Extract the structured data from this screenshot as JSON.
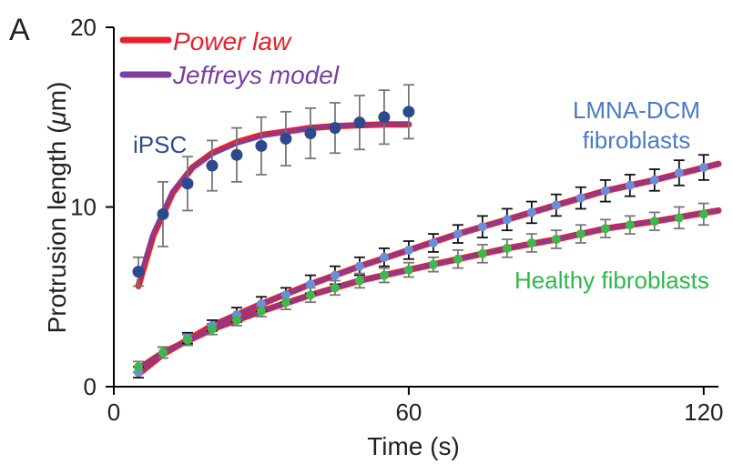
{
  "panel_label": "A",
  "chart_data": {
    "type": "line",
    "title": "",
    "xlabel": "Time (s)",
    "ylabel_prefix": "Protrusion length (",
    "ylabel_mu": "μ",
    "ylabel_suffix": "m)",
    "xlim": [
      0,
      123
    ],
    "ylim": [
      0,
      20
    ],
    "xticks": [
      0,
      60,
      120
    ],
    "yticks": [
      0,
      10,
      20
    ],
    "grid": false,
    "legend_position": "top-left",
    "legend": [
      {
        "label": "Power law",
        "color": "#e8202a"
      },
      {
        "label": "Jeffreys model",
        "color": "#7a3fa0"
      }
    ],
    "series": [
      {
        "name": "iPSC",
        "label_lines": [
          "iPSC"
        ],
        "color": "#2e4a8e",
        "label_color": "#2e4a8e",
        "x": [
          5,
          10,
          15,
          20,
          25,
          30,
          35,
          40,
          45,
          50,
          55,
          60
        ],
        "y": [
          6.4,
          9.6,
          11.3,
          12.3,
          12.9,
          13.4,
          13.8,
          14.1,
          14.4,
          14.7,
          15.0,
          15.3
        ],
        "err": [
          0.8,
          1.8,
          1.5,
          1.4,
          1.5,
          1.6,
          1.5,
          1.4,
          1.4,
          1.5,
          1.5,
          1.5
        ]
      },
      {
        "name": "LMNA-DCM fibroblasts",
        "label_lines": [
          "LMNA-DCM",
          "fibroblasts"
        ],
        "color": "#6a8fd8",
        "label_color": "#4a7ac8",
        "x": [
          5,
          10,
          15,
          20,
          25,
          30,
          35,
          40,
          45,
          50,
          55,
          60,
          65,
          70,
          75,
          80,
          85,
          90,
          95,
          100,
          105,
          110,
          115,
          120
        ],
        "y": [
          0.8,
          1.9,
          2.7,
          3.4,
          4.0,
          4.6,
          5.1,
          5.7,
          6.2,
          6.7,
          7.2,
          7.6,
          8.0,
          8.5,
          8.9,
          9.3,
          9.7,
          10.1,
          10.5,
          10.9,
          11.2,
          11.5,
          11.9,
          12.2
        ],
        "err": [
          0.3,
          0.3,
          0.3,
          0.3,
          0.4,
          0.4,
          0.4,
          0.5,
          0.5,
          0.5,
          0.5,
          0.5,
          0.5,
          0.5,
          0.6,
          0.6,
          0.6,
          0.6,
          0.6,
          0.6,
          0.6,
          0.6,
          0.7,
          0.7
        ]
      },
      {
        "name": "Healthy fibroblasts",
        "label_lines": [
          "Healthy fibroblasts"
        ],
        "color": "#3db84a",
        "label_color": "#2db84a",
        "x": [
          5,
          10,
          15,
          20,
          25,
          30,
          35,
          40,
          45,
          50,
          55,
          60,
          65,
          70,
          75,
          80,
          85,
          90,
          95,
          100,
          105,
          110,
          115,
          120
        ],
        "y": [
          1.1,
          1.9,
          2.6,
          3.2,
          3.7,
          4.2,
          4.7,
          5.1,
          5.5,
          5.9,
          6.2,
          6.5,
          6.8,
          7.1,
          7.4,
          7.7,
          8.0,
          8.2,
          8.5,
          8.8,
          9.0,
          9.2,
          9.4,
          9.6
        ],
        "err": [
          0.3,
          0.3,
          0.3,
          0.3,
          0.3,
          0.3,
          0.4,
          0.4,
          0.4,
          0.4,
          0.4,
          0.4,
          0.4,
          0.5,
          0.5,
          0.5,
          0.5,
          0.5,
          0.5,
          0.5,
          0.5,
          0.5,
          0.6,
          0.6
        ]
      }
    ],
    "fits": [
      {
        "series": "iPSC",
        "model": "Power law",
        "x": [
          5,
          8,
          12,
          16,
          20,
          25,
          30,
          35,
          40,
          45,
          50,
          55,
          60
        ],
        "y": [
          5.6,
          8.4,
          10.8,
          12.2,
          13.0,
          13.6,
          14.0,
          14.2,
          14.4,
          14.5,
          14.55,
          14.6,
          14.6
        ]
      },
      {
        "series": "iPSC",
        "model": "Jeffreys model",
        "x": [
          5,
          8,
          12,
          16,
          20,
          25,
          30,
          35,
          40,
          45,
          50,
          55,
          60
        ],
        "y": [
          5.9,
          8.6,
          10.9,
          12.2,
          12.9,
          13.5,
          13.9,
          14.2,
          14.4,
          14.5,
          14.6,
          14.6,
          14.65
        ]
      },
      {
        "series": "LMNA-DCM fibroblasts",
        "model": "Power law",
        "x": [
          5,
          10,
          20,
          30,
          40,
          50,
          60,
          70,
          80,
          90,
          100,
          110,
          123
        ],
        "y": [
          0.7,
          1.8,
          3.4,
          4.6,
          5.7,
          6.7,
          7.6,
          8.5,
          9.3,
          10.1,
          10.9,
          11.5,
          12.4
        ]
      },
      {
        "series": "LMNA-DCM fibroblasts",
        "model": "Jeffreys model",
        "x": [
          5,
          10,
          20,
          30,
          40,
          50,
          60,
          70,
          80,
          90,
          100,
          110,
          123
        ],
        "y": [
          0.7,
          1.8,
          3.4,
          4.6,
          5.7,
          6.7,
          7.6,
          8.5,
          9.3,
          10.1,
          10.9,
          11.5,
          12.4
        ]
      },
      {
        "series": "Healthy fibroblasts",
        "model": "Power law",
        "x": [
          5,
          10,
          20,
          30,
          40,
          50,
          60,
          70,
          80,
          90,
          100,
          110,
          123
        ],
        "y": [
          1.0,
          1.9,
          3.2,
          4.2,
          5.1,
          5.9,
          6.5,
          7.1,
          7.7,
          8.2,
          8.8,
          9.2,
          9.8
        ]
      },
      {
        "series": "Healthy fibroblasts",
        "model": "Jeffreys model",
        "x": [
          5,
          10,
          20,
          30,
          40,
          50,
          60,
          70,
          80,
          90,
          100,
          110,
          123
        ],
        "y": [
          1.0,
          1.9,
          3.2,
          4.2,
          5.1,
          5.9,
          6.5,
          7.1,
          7.7,
          8.2,
          8.8,
          9.2,
          9.8
        ]
      }
    ]
  }
}
